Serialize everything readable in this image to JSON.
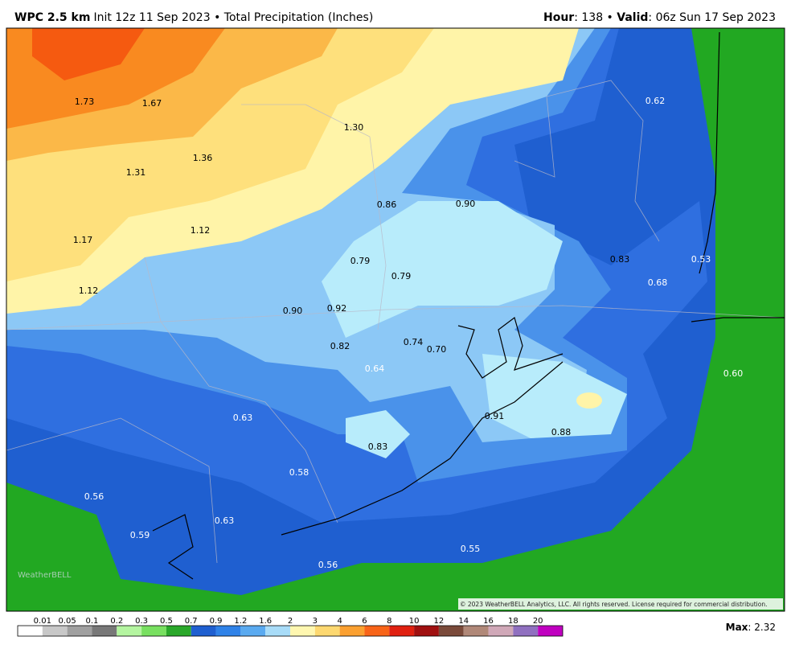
{
  "header": {
    "model": "WPC 2.5 km",
    "init": "Init 12z 11 Sep 2023 • Total Precipitation (Inches)",
    "hour_label": "Hour",
    "hour_value": ": 138 • ",
    "valid_label": "Valid",
    "valid_value": ": 06z Sun 17 Sep 2023"
  },
  "map": {
    "labels": [
      "1.73",
      "1.67",
      "1.30",
      "1.36",
      "1.31",
      "0.62",
      "0.86",
      "0.90",
      "1.12",
      "1.17",
      "0.83",
      "0.53",
      "0.79",
      "0.79",
      "0.68",
      "1.12",
      "0.90",
      "0.92",
      "0.74",
      "0.70",
      "0.82",
      "0.64",
      "0.60",
      "0.63",
      "0.91",
      "0.88",
      "0.83",
      "0.58",
      "0.56",
      "0.63",
      "0.59",
      "0.55",
      "0.56"
    ],
    "logo": "WeatherBELL",
    "copyright": "© 2023 WeatherBELL Analytics, LLC. All rights reserved. License required for commercial distribution."
  },
  "colorbar": {
    "labels": [
      "0.01",
      "0.05",
      "0.1",
      "0.2",
      "0.3",
      "0.5",
      "0.7",
      "0.9",
      "1.2",
      "1.6",
      "2",
      "3",
      "4",
      "6",
      "8",
      "10",
      "12",
      "14",
      "16",
      "18",
      "20"
    ],
    "colors": [
      "#ffffff",
      "#c8c8c8",
      "#a0a0a0",
      "#787878",
      "#b4f5a0",
      "#78e060",
      "#2aa82a",
      "#1f5fd0",
      "#2f82e8",
      "#5aaaf0",
      "#a8dcf8",
      "#fff7b0",
      "#fdd870",
      "#fba030",
      "#f86418",
      "#e02010",
      "#a01010",
      "#7a4a3a",
      "#b08878",
      "#d0a8b8",
      "#9070c0",
      "#c000c0"
    ],
    "max_label": "Max",
    "max_value": ": 2.32"
  }
}
